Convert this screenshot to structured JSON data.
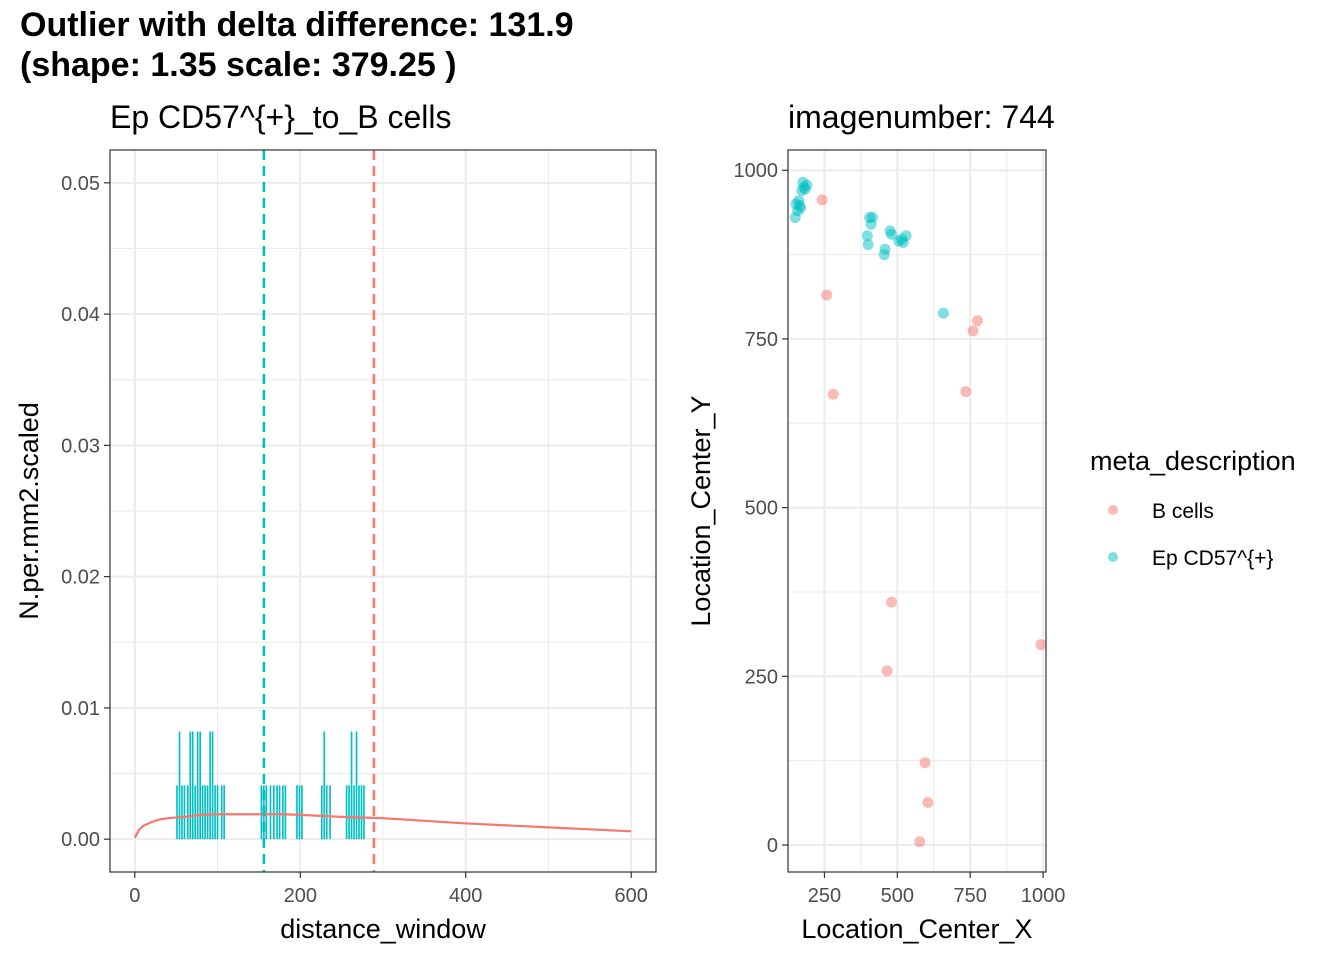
{
  "title": {
    "line1": "Outlier with delta difference: 131.9",
    "line2": "(shape: 1.35 scale: 379.25 )"
  },
  "colors": {
    "b_cells": "#F8766D",
    "ep_cd57": "#00BFC4",
    "grid": "#EBEBEB",
    "panel_border": "#333333",
    "tick_label": "#4D4D4D"
  },
  "chart_data": [
    {
      "type": "bar",
      "title": "Ep CD57^{+}_to_B cells",
      "xlabel": "distance_window",
      "ylabel": "N.per.mm2.scaled",
      "xlim": [
        -30,
        630
      ],
      "ylim": [
        -0.0025,
        0.0525
      ],
      "x_ticks": [
        0,
        200,
        400,
        600
      ],
      "x_tick_labels": [
        "0",
        "200",
        "400",
        "600"
      ],
      "y_ticks": [
        0.0,
        0.01,
        0.02,
        0.03,
        0.04,
        0.05
      ],
      "y_tick_labels": [
        "0.00",
        "0.01",
        "0.02",
        "0.03",
        "0.04",
        "0.05"
      ],
      "grid": true,
      "bar_color": "#00BFC4",
      "bar_width": 2,
      "bars": [
        {
          "x": 51,
          "value": 0.0041
        },
        {
          "x": 54,
          "value": 0.0082
        },
        {
          "x": 57,
          "value": 0.0041
        },
        {
          "x": 60,
          "value": 0.0041
        },
        {
          "x": 64,
          "value": 0.0041
        },
        {
          "x": 67,
          "value": 0.0082
        },
        {
          "x": 70,
          "value": 0.0082
        },
        {
          "x": 73,
          "value": 0.0041
        },
        {
          "x": 76,
          "value": 0.0082
        },
        {
          "x": 79,
          "value": 0.0082
        },
        {
          "x": 82,
          "value": 0.0041
        },
        {
          "x": 85,
          "value": 0.0041
        },
        {
          "x": 88,
          "value": 0.0041
        },
        {
          "x": 91,
          "value": 0.0082
        },
        {
          "x": 94,
          "value": 0.0082
        },
        {
          "x": 97,
          "value": 0.0041
        },
        {
          "x": 100,
          "value": 0.0041
        },
        {
          "x": 105,
          "value": 0.0041
        },
        {
          "x": 108,
          "value": 0.0041
        },
        {
          "x": 153,
          "value": 0.0041
        },
        {
          "x": 156,
          "value": 0.0041
        },
        {
          "x": 159,
          "value": 0.0041
        },
        {
          "x": 164,
          "value": 0.0041
        },
        {
          "x": 168,
          "value": 0.0041
        },
        {
          "x": 172,
          "value": 0.0041
        },
        {
          "x": 175,
          "value": 0.0041
        },
        {
          "x": 179,
          "value": 0.0041
        },
        {
          "x": 182,
          "value": 0.0041
        },
        {
          "x": 196,
          "value": 0.0041
        },
        {
          "x": 199,
          "value": 0.0041
        },
        {
          "x": 202,
          "value": 0.0041
        },
        {
          "x": 226,
          "value": 0.0041
        },
        {
          "x": 229,
          "value": 0.0082
        },
        {
          "x": 232,
          "value": 0.0041
        },
        {
          "x": 236,
          "value": 0.0041
        },
        {
          "x": 256,
          "value": 0.0041
        },
        {
          "x": 259,
          "value": 0.0041
        },
        {
          "x": 262,
          "value": 0.0082
        },
        {
          "x": 265,
          "value": 0.0041
        },
        {
          "x": 268,
          "value": 0.0082
        },
        {
          "x": 271,
          "value": 0.0041
        },
        {
          "x": 274,
          "value": 0.0041
        },
        {
          "x": 277,
          "value": 0.0041
        }
      ],
      "curve": {
        "name": "fitted density",
        "color": "#F8766D",
        "x": [
          0,
          5,
          10,
          20,
          30,
          40,
          60,
          80,
          100,
          120,
          140,
          160,
          180,
          200,
          250,
          300,
          350,
          400,
          450,
          500,
          550,
          600
        ],
        "y": [
          0.0001,
          0.0007,
          0.001,
          0.0013,
          0.0015,
          0.0016,
          0.0017,
          0.00185,
          0.0019,
          0.0019,
          0.0019,
          0.0019,
          0.0019,
          0.00185,
          0.0017,
          0.0016,
          0.0014,
          0.0012,
          0.00105,
          0.0009,
          0.00075,
          0.0006
        ]
      },
      "vlines": [
        {
          "name": "ep-cd57-reference-line",
          "x": 156,
          "color": "#00BFC4"
        },
        {
          "name": "b-cells-reference-line",
          "x": 289,
          "color": "#F8766D"
        }
      ]
    },
    {
      "type": "scatter",
      "title": "imagenumber:  744",
      "xlabel": "Location_Center_X",
      "ylabel": "Location_Center_Y",
      "xlim": [
        125,
        1010
      ],
      "ylim": [
        -40,
        1030
      ],
      "x_ticks": [
        250,
        500,
        750,
        1000
      ],
      "x_tick_labels": [
        "250",
        "500",
        "750",
        "1000"
      ],
      "y_ticks": [
        0,
        250,
        500,
        750,
        1000
      ],
      "y_tick_labels": [
        "0",
        "250",
        "500",
        "750",
        "1000"
      ],
      "grid": true,
      "point_opacity": 0.5,
      "series": [
        {
          "name": "B cells",
          "color": "#F8766D",
          "points": [
            [
              242,
              956
            ],
            [
              258,
              815
            ],
            [
              280,
              668
            ],
            [
              735,
              672
            ],
            [
              760,
              762
            ],
            [
              775,
              777
            ],
            [
              480,
              360
            ],
            [
              465,
              258
            ],
            [
              595,
              122
            ],
            [
              605,
              63
            ],
            [
              577,
              5
            ],
            [
              993,
              297
            ]
          ]
        },
        {
          "name": "Ep CD57^{+}",
          "color": "#00BFC4",
          "points": [
            [
              150,
              930
            ],
            [
              152,
              950
            ],
            [
              158,
              940
            ],
            [
              162,
              955
            ],
            [
              165,
              948
            ],
            [
              168,
              944
            ],
            [
              172,
              970
            ],
            [
              176,
              982
            ],
            [
              180,
              975
            ],
            [
              184,
              972
            ],
            [
              190,
              978
            ],
            [
              397,
              903
            ],
            [
              400,
              890
            ],
            [
              405,
              930
            ],
            [
              410,
              920
            ],
            [
              415,
              930
            ],
            [
              455,
              875
            ],
            [
              458,
              883
            ],
            [
              475,
              910
            ],
            [
              480,
              905
            ],
            [
              505,
              895
            ],
            [
              515,
              898
            ],
            [
              520,
              893
            ],
            [
              530,
              903
            ],
            [
              658,
              788
            ]
          ]
        }
      ],
      "legend": {
        "title": "meta_description",
        "position": "right",
        "entries": [
          {
            "label": "B cells",
            "color": "#F8766D"
          },
          {
            "label": "Ep CD57^{+}",
            "color": "#00BFC4"
          }
        ]
      }
    }
  ]
}
